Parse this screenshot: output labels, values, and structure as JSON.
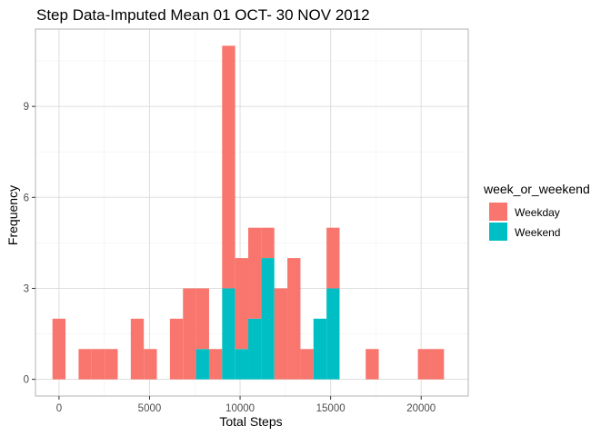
{
  "chart_data": {
    "type": "bar",
    "subtype": "stacked-histogram",
    "title": "Step Data-Imputed Mean 01 OCT- 30 NOV 2012",
    "xlabel": "Total Steps",
    "ylabel": "Frequency",
    "xlim": [
      -1300,
      22600
    ],
    "ylim": [
      -0.55,
      11.55
    ],
    "x_ticks": [
      0,
      5000,
      10000,
      15000,
      20000
    ],
    "x_tick_labels": [
      "0",
      "5000",
      "10000",
      "15000",
      "20000"
    ],
    "y_ticks": [
      0,
      3,
      6,
      9
    ],
    "y_tick_labels": [
      "0",
      "3",
      "6",
      "9"
    ],
    "minor_grid_x": [
      2500,
      7500,
      12500,
      17500
    ],
    "minor_grid_y": [
      1.5,
      4.5,
      7.5,
      10.5
    ],
    "grid": true,
    "legend_title": "week_or_weekend",
    "legend_position": "right",
    "bin_width": 720.7,
    "bins_x": [
      0,
      1441.4,
      2162.1,
      2882.8,
      4324.2,
      5044.9,
      6486.3,
      7207,
      7927.7,
      8648.4,
      9369.1,
      10089.8,
      10810.5,
      11531.2,
      12251.9,
      12972.6,
      13693.3,
      14414,
      15134.7,
      17296.8,
      20179.6,
      20900.3
    ],
    "series": [
      {
        "name": "Weekday",
        "color": "#F8766D",
        "values": [
          2,
          1,
          1,
          1,
          2,
          1,
          2,
          3,
          2,
          1,
          8,
          3,
          3,
          1,
          3,
          4,
          1,
          0,
          2,
          1,
          1,
          1
        ]
      },
      {
        "name": "Weekend",
        "color": "#00BFC4",
        "values": [
          0,
          0,
          0,
          0,
          0,
          0,
          0,
          0,
          1,
          0,
          3,
          1,
          2,
          4,
          0,
          0,
          0,
          2,
          3,
          0,
          0,
          0
        ]
      }
    ]
  }
}
